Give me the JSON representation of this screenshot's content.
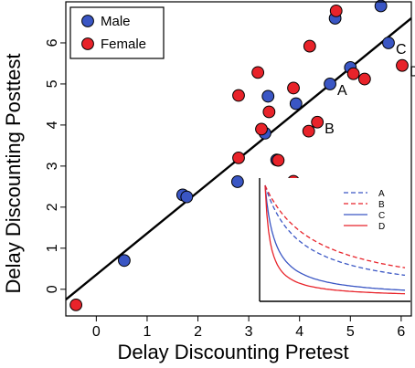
{
  "chart_data": {
    "type": "scatter",
    "xlabel": "Delay Discounting Pretest",
    "ylabel": "Delay Discounting Posttest",
    "xlim": [
      -0.6,
      6.2
    ],
    "ylim": [
      -0.65,
      7.0
    ],
    "x_ticks": [
      0,
      1,
      2,
      3,
      4,
      5,
      6
    ],
    "y_ticks": [
      0,
      1,
      2,
      3,
      4,
      5,
      6
    ],
    "legend": {
      "position": "top-left",
      "entries": [
        "Male",
        "Female"
      ]
    },
    "series": [
      {
        "name": "Male",
        "color": "#3a56c4",
        "points": [
          [
            0.55,
            0.7
          ],
          [
            1.7,
            2.3
          ],
          [
            1.78,
            2.25
          ],
          [
            2.78,
            2.62
          ],
          [
            3.32,
            3.8
          ],
          [
            3.38,
            4.7
          ],
          [
            3.55,
            3.15
          ],
          [
            3.93,
            4.52
          ],
          [
            4.6,
            5.0
          ],
          [
            4.7,
            6.6
          ],
          [
            5.0,
            5.4
          ],
          [
            5.6,
            6.9
          ],
          [
            5.75,
            6.0
          ]
        ]
      },
      {
        "name": "Female",
        "color": "#e8232a",
        "points": [
          [
            -0.4,
            -0.38
          ],
          [
            2.8,
            3.2
          ],
          [
            2.8,
            4.72
          ],
          [
            3.18,
            5.28
          ],
          [
            3.25,
            3.9
          ],
          [
            3.4,
            4.32
          ],
          [
            3.58,
            3.14
          ],
          [
            3.88,
            4.9
          ],
          [
            3.88,
            2.63
          ],
          [
            4.18,
            3.85
          ],
          [
            4.2,
            5.92
          ],
          [
            4.35,
            4.07
          ],
          [
            4.72,
            6.78
          ],
          [
            5.06,
            5.25
          ],
          [
            5.28,
            5.12
          ],
          [
            6.02,
            5.45
          ]
        ]
      }
    ],
    "fit_line": {
      "x": [
        -0.6,
        6.2
      ],
      "y": [
        -0.25,
        6.6
      ]
    },
    "annotations": [
      {
        "label": "A",
        "x": 4.6,
        "y": 5.0
      },
      {
        "label": "B",
        "x": 4.35,
        "y": 4.07
      },
      {
        "label": "C",
        "x": 5.75,
        "y": 6.0
      },
      {
        "label": "D",
        "x": 6.02,
        "y": 5.45
      }
    ],
    "inset": {
      "type": "line",
      "legend": [
        "A",
        "B",
        "C",
        "D"
      ],
      "series": [
        {
          "name": "A",
          "color": "#3a56c4",
          "dash": "dashed",
          "k": 0.8
        },
        {
          "name": "B",
          "color": "#e8232a",
          "dash": "dashed",
          "k": 0.55
        },
        {
          "name": "C",
          "color": "#3a56c4",
          "dash": "solid",
          "k": 2.8
        },
        {
          "name": "D",
          "color": "#e8232a",
          "dash": "solid",
          "k": 5.5
        }
      ]
    }
  }
}
